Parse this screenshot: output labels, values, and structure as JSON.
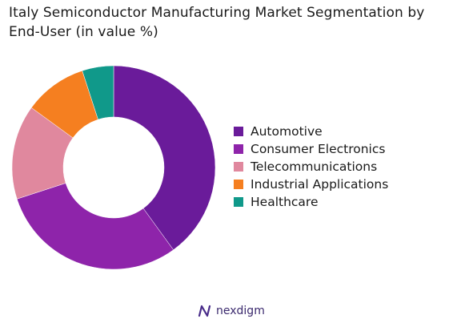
{
  "chart_data": {
    "type": "pie",
    "title": "Italy Semiconductor Manufacturing Market Segmentation by End-User (in value %)",
    "donut": true,
    "legend_position": "right",
    "series": [
      {
        "name": "Automotive",
        "value": 40,
        "color": "#6a1b9a"
      },
      {
        "name": "Consumer Electronics",
        "value": 30,
        "color": "#8e24aa"
      },
      {
        "name": "Telecommunications",
        "value": 15,
        "color": "#e0889e"
      },
      {
        "name": "Industrial Applications",
        "value": 10,
        "color": "#f57f20"
      },
      {
        "name": "Healthcare",
        "value": 5,
        "color": "#10998a"
      }
    ]
  },
  "brand": {
    "name": "nexdigm",
    "icon": "nexdigm-logo-icon"
  }
}
